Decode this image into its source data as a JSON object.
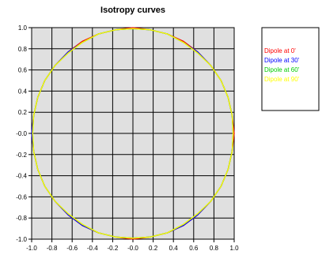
{
  "chart_data": {
    "type": "line",
    "title": "Isotropy curves",
    "xlabel": "",
    "ylabel": "",
    "xlim": [
      -1.0,
      1.0
    ],
    "ylim": [
      -1.0,
      1.0
    ],
    "grid": true,
    "legend_position": "right",
    "x_ticks": [
      "-1.0",
      "-0.8",
      "-0.6",
      "-0.4",
      "-0.2",
      "-0.0",
      "0.2",
      "0.4",
      "0.6",
      "0.8",
      "1.0"
    ],
    "y_ticks": [
      "1.0",
      "0.8",
      "0.6",
      "0.4",
      "0.2",
      "-0.0",
      "-0.2",
      "-0.4",
      "-0.6",
      "-0.8",
      "-1.0"
    ],
    "colors": {
      "plot_background": "#e0e0e0",
      "grid": "#000000",
      "axis": "#000000"
    },
    "series": [
      {
        "name": "Dipole at 0'",
        "color": "#ff0000",
        "x": [
          0.0,
          0.17,
          0.34,
          0.5,
          0.64,
          0.77,
          0.87,
          0.94,
          0.98,
          1.0,
          0.98,
          0.94,
          0.87,
          0.77,
          0.64,
          0.5,
          0.34,
          0.17,
          0.0,
          -0.17,
          -0.34,
          -0.5,
          -0.64,
          -0.77,
          -0.87,
          -0.94,
          -0.98,
          -1.0,
          -0.98,
          -0.94,
          -0.87,
          -0.77,
          -0.64,
          -0.5,
          -0.34,
          -0.17,
          0.0
        ],
        "y": [
          1.0,
          0.98,
          0.94,
          0.87,
          0.77,
          0.64,
          0.5,
          0.34,
          0.17,
          0.0,
          -0.17,
          -0.34,
          -0.5,
          -0.64,
          -0.77,
          -0.87,
          -0.94,
          -0.98,
          -1.0,
          -0.98,
          -0.94,
          -0.87,
          -0.77,
          -0.64,
          -0.5,
          -0.34,
          -0.17,
          0.0,
          0.17,
          0.34,
          0.5,
          0.64,
          0.77,
          0.87,
          0.94,
          0.98,
          1.0
        ]
      },
      {
        "name": "Dipole at 30'",
        "color": "#0000ff",
        "x": [
          0.0,
          0.17,
          0.34,
          0.5,
          0.64,
          0.77,
          0.87,
          0.94,
          0.98,
          0.99,
          0.98,
          0.94,
          0.87,
          0.77,
          0.64,
          0.5,
          0.34,
          0.17,
          0.0,
          -0.17,
          -0.34,
          -0.5,
          -0.64,
          -0.77,
          -0.87,
          -0.94,
          -0.98,
          -1.0,
          -0.98,
          -0.94,
          -0.87,
          -0.77,
          -0.64,
          -0.5,
          -0.34,
          -0.17,
          0.0
        ],
        "y": [
          0.99,
          0.98,
          0.94,
          0.86,
          0.77,
          0.64,
          0.5,
          0.34,
          0.17,
          0.0,
          -0.17,
          -0.34,
          -0.5,
          -0.64,
          -0.77,
          -0.87,
          -0.94,
          -0.98,
          -0.99,
          -0.98,
          -0.94,
          -0.87,
          -0.77,
          -0.64,
          -0.5,
          -0.34,
          -0.17,
          0.0,
          0.17,
          0.34,
          0.5,
          0.64,
          0.77,
          0.86,
          0.94,
          0.98,
          0.99
        ]
      },
      {
        "name": "Dipole at 60'",
        "color": "#00cc00",
        "x": [
          0.0,
          0.17,
          0.34,
          0.5,
          0.64,
          0.77,
          0.87,
          0.94,
          0.98,
          0.99,
          0.98,
          0.94,
          0.87,
          0.77,
          0.64,
          0.5,
          0.34,
          0.17,
          0.0,
          -0.17,
          -0.34,
          -0.5,
          -0.64,
          -0.77,
          -0.87,
          -0.94,
          -0.98,
          -0.99,
          -0.98,
          -0.94,
          -0.87,
          -0.77,
          -0.64,
          -0.5,
          -0.34,
          -0.17,
          0.0
        ],
        "y": [
          0.99,
          0.98,
          0.94,
          0.86,
          0.76,
          0.64,
          0.5,
          0.34,
          0.17,
          0.0,
          -0.17,
          -0.34,
          -0.5,
          -0.64,
          -0.76,
          -0.86,
          -0.94,
          -0.98,
          -0.99,
          -0.98,
          -0.94,
          -0.86,
          -0.76,
          -0.64,
          -0.5,
          -0.34,
          -0.17,
          0.0,
          0.17,
          0.34,
          0.5,
          0.64,
          0.76,
          0.86,
          0.94,
          0.98,
          0.99
        ]
      },
      {
        "name": "Dipole at 90'",
        "color": "#ffff00",
        "x": [
          0.0,
          0.17,
          0.34,
          0.5,
          0.64,
          0.77,
          0.87,
          0.94,
          0.98,
          0.99,
          0.98,
          0.94,
          0.87,
          0.77,
          0.64,
          0.5,
          0.34,
          0.17,
          0.0,
          -0.17,
          -0.34,
          -0.5,
          -0.64,
          -0.77,
          -0.87,
          -0.94,
          -0.98,
          -0.99,
          -0.98,
          -0.94,
          -0.87,
          -0.77,
          -0.64,
          -0.5,
          -0.34,
          -0.17,
          0.0
        ],
        "y": [
          0.99,
          0.98,
          0.94,
          0.86,
          0.76,
          0.64,
          0.5,
          0.34,
          0.17,
          0.0,
          -0.17,
          -0.34,
          -0.5,
          -0.64,
          -0.76,
          -0.86,
          -0.94,
          -0.98,
          -0.99,
          -0.98,
          -0.94,
          -0.86,
          -0.76,
          -0.64,
          -0.5,
          -0.34,
          -0.17,
          0.0,
          0.17,
          0.34,
          0.5,
          0.64,
          0.76,
          0.86,
          0.94,
          0.98,
          0.99
        ]
      }
    ]
  }
}
